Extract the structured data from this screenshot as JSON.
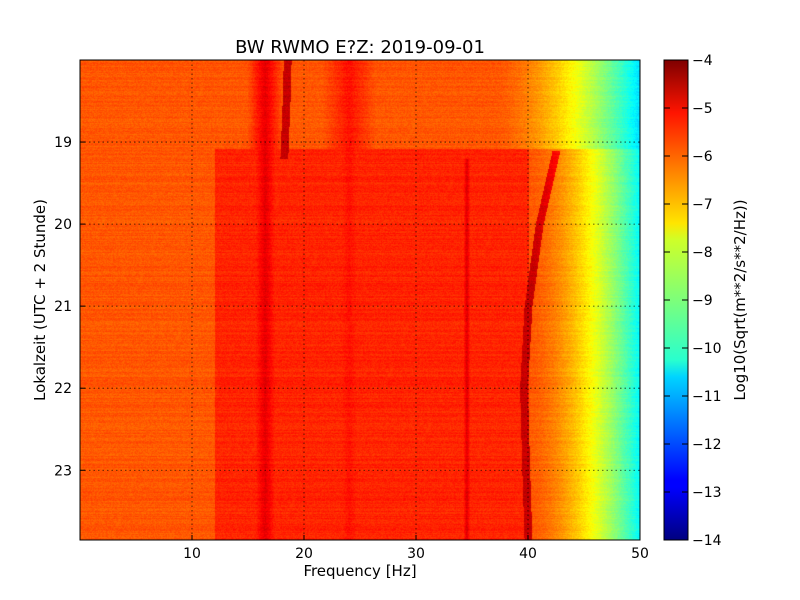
{
  "chart_data": {
    "type": "heatmap",
    "title": "BW RWMO E?Z: 2019-09-01",
    "xlabel": "Frequency [Hz]",
    "ylabel": "Lokalzeit (UTC + 2 Stunde)",
    "colorbar_label": "Log10(Sqrt(m**2/s**2/Hz))",
    "colormap": "jet",
    "xlim": [
      0,
      50
    ],
    "ylim": [
      23.85,
      18.0
    ],
    "x_ticks": [
      10,
      20,
      30,
      40,
      50
    ],
    "y_ticks": [
      19,
      20,
      21,
      22,
      23
    ],
    "colorbar_range": [
      -14,
      -4
    ],
    "colorbar_ticks": [
      -4,
      -5,
      -6,
      -7,
      -8,
      -9,
      -10,
      -11,
      -12,
      -13,
      -14
    ],
    "grid": true,
    "background_level": -6.1,
    "rolloff": {
      "start_hz": 40,
      "end_hz": 50,
      "end_level": -10.3
    },
    "early_rolloff": {
      "until_hour": 19.08,
      "start_hz": 37,
      "end_level": -10.6
    },
    "ridge_bands": [
      {
        "center_hz": 16.5,
        "width_hz": 1.6,
        "level": -5.0
      },
      {
        "center_hz": 24.0,
        "width_hz": 2.4,
        "level": -5.4
      },
      {
        "center_hz": 34.5,
        "width_hz": 0.5,
        "level": -4.9,
        "from_hour": 19.2
      }
    ],
    "ridge_lines": [
      {
        "points": [
          [
            18.5,
            18.0
          ],
          [
            18.4,
            18.5
          ],
          [
            18.2,
            19.2
          ]
        ],
        "level": -4.7
      },
      {
        "points": [
          [
            42.5,
            19.1
          ],
          [
            41.0,
            20.0
          ],
          [
            40.0,
            21.0
          ],
          [
            39.6,
            22.0
          ],
          [
            39.8,
            23.0
          ],
          [
            40.0,
            23.85
          ]
        ],
        "level": -4.7
      }
    ],
    "elevated_region": {
      "from_hz": 12,
      "to_hz": 40,
      "from_hour": 19.08,
      "to_hour": 23.85,
      "level": -5.6
    },
    "time_bands": [
      {
        "from_hour": 18.4,
        "to_hour": 18.55,
        "level": -5.5
      },
      {
        "from_hour": 19.3,
        "to_hour": 19.45,
        "level": -5.4
      },
      {
        "from_hour": 20.3,
        "to_hour": 20.7,
        "level": -5.5
      },
      {
        "from_hour": 21.5,
        "to_hour": 22.5,
        "level": -5.4
      }
    ]
  }
}
